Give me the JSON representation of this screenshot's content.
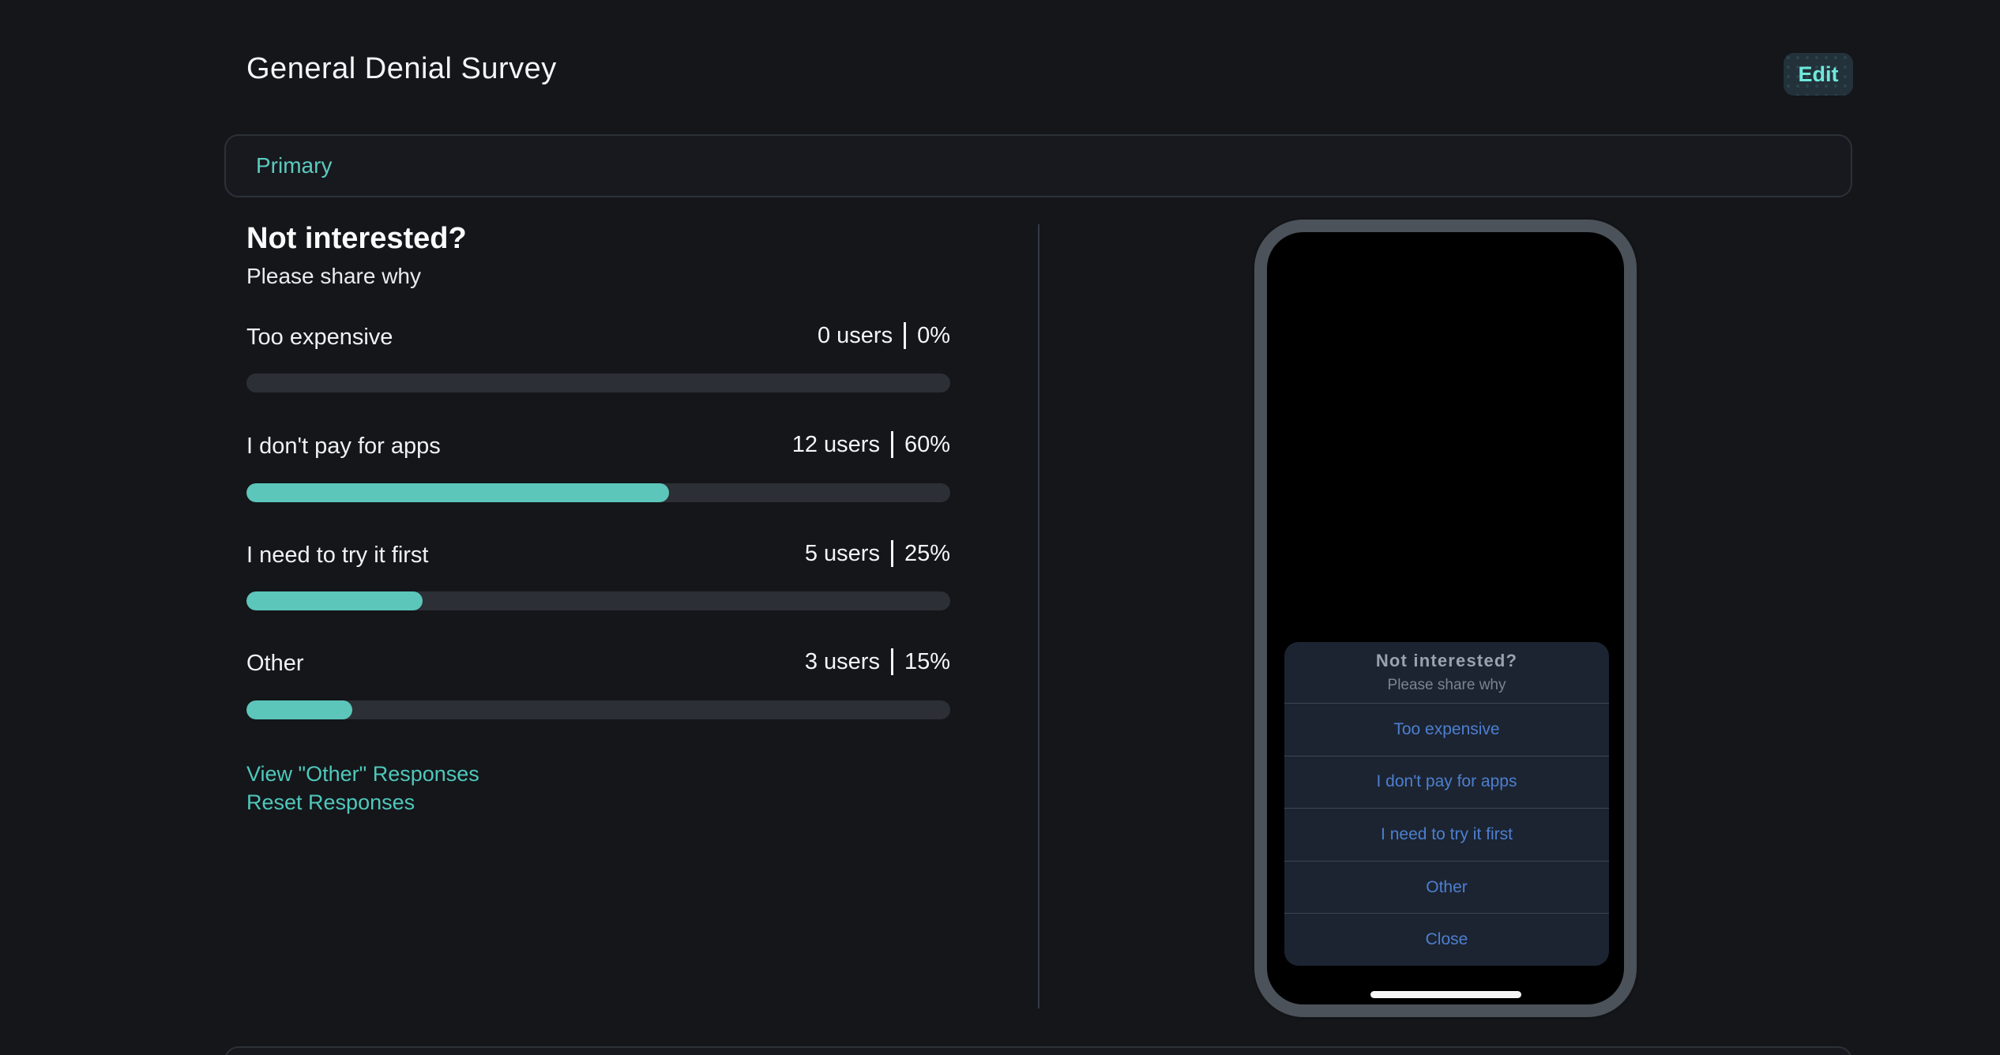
{
  "header": {
    "title": "General Denial Survey",
    "edit_label": "Edit"
  },
  "tabs": {
    "primary_label": "Primary"
  },
  "survey": {
    "question": "Not interested?",
    "subtitle": "Please share why",
    "options": [
      {
        "label": "Too expensive",
        "users": "0 users",
        "percent": "0%",
        "value": 0
      },
      {
        "label": "I don't pay for apps",
        "users": "12 users",
        "percent": "60%",
        "value": 60
      },
      {
        "label": "I need to try it first",
        "users": "5 users",
        "percent": "25%",
        "value": 25
      },
      {
        "label": "Other",
        "users": "3 users",
        "percent": "15%",
        "value": 15
      }
    ],
    "links": {
      "view_other": "View \"Other\" Responses",
      "reset": "Reset Responses"
    }
  },
  "phone": {
    "dialog": {
      "title": "Not interested?",
      "subtitle": "Please share why",
      "options": [
        "Too expensive",
        "I don't pay for apps",
        "I need to try it first",
        "Other"
      ],
      "close": "Close"
    }
  },
  "colors": {
    "page_bg": "#14161a",
    "accent_teal": "#5cc6ba",
    "link_teal": "#4fc8bb",
    "edit_teal": "#6fe9dc",
    "option_blue": "#4d7fd0",
    "bar_track": "#2c2f35",
    "dialog_bg": "#1c2431",
    "phone_bezel": "#4c525a"
  }
}
